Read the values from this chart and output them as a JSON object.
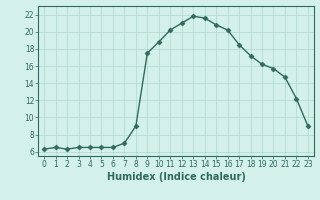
{
  "xlabel": "Humidex (Indice chaleur)",
  "x": [
    0,
    1,
    2,
    3,
    4,
    5,
    6,
    7,
    8,
    9,
    10,
    11,
    12,
    13,
    14,
    15,
    16,
    17,
    18,
    19,
    20,
    21,
    22,
    23
  ],
  "y": [
    6.3,
    6.5,
    6.3,
    6.5,
    6.5,
    6.5,
    6.5,
    7.0,
    9.0,
    17.5,
    18.8,
    20.2,
    21.0,
    21.8,
    21.6,
    20.8,
    20.2,
    18.5,
    17.2,
    16.2,
    15.7,
    14.7,
    12.2,
    9.0
  ],
  "line_color": "#2e6b5e",
  "marker": "D",
  "marker_size": 2.5,
  "bg_color": "#d4f0eb",
  "grid_color": "#b0d8d2",
  "xlim": [
    -0.5,
    23.5
  ],
  "ylim": [
    5.5,
    23
  ],
  "yticks": [
    6,
    8,
    10,
    12,
    14,
    16,
    18,
    20,
    22
  ],
  "xticks": [
    0,
    1,
    2,
    3,
    4,
    5,
    6,
    7,
    8,
    9,
    10,
    11,
    12,
    13,
    14,
    15,
    16,
    17,
    18,
    19,
    20,
    21,
    22,
    23
  ],
  "tick_fontsize": 5.5,
  "label_fontsize": 7,
  "linewidth": 1.0
}
